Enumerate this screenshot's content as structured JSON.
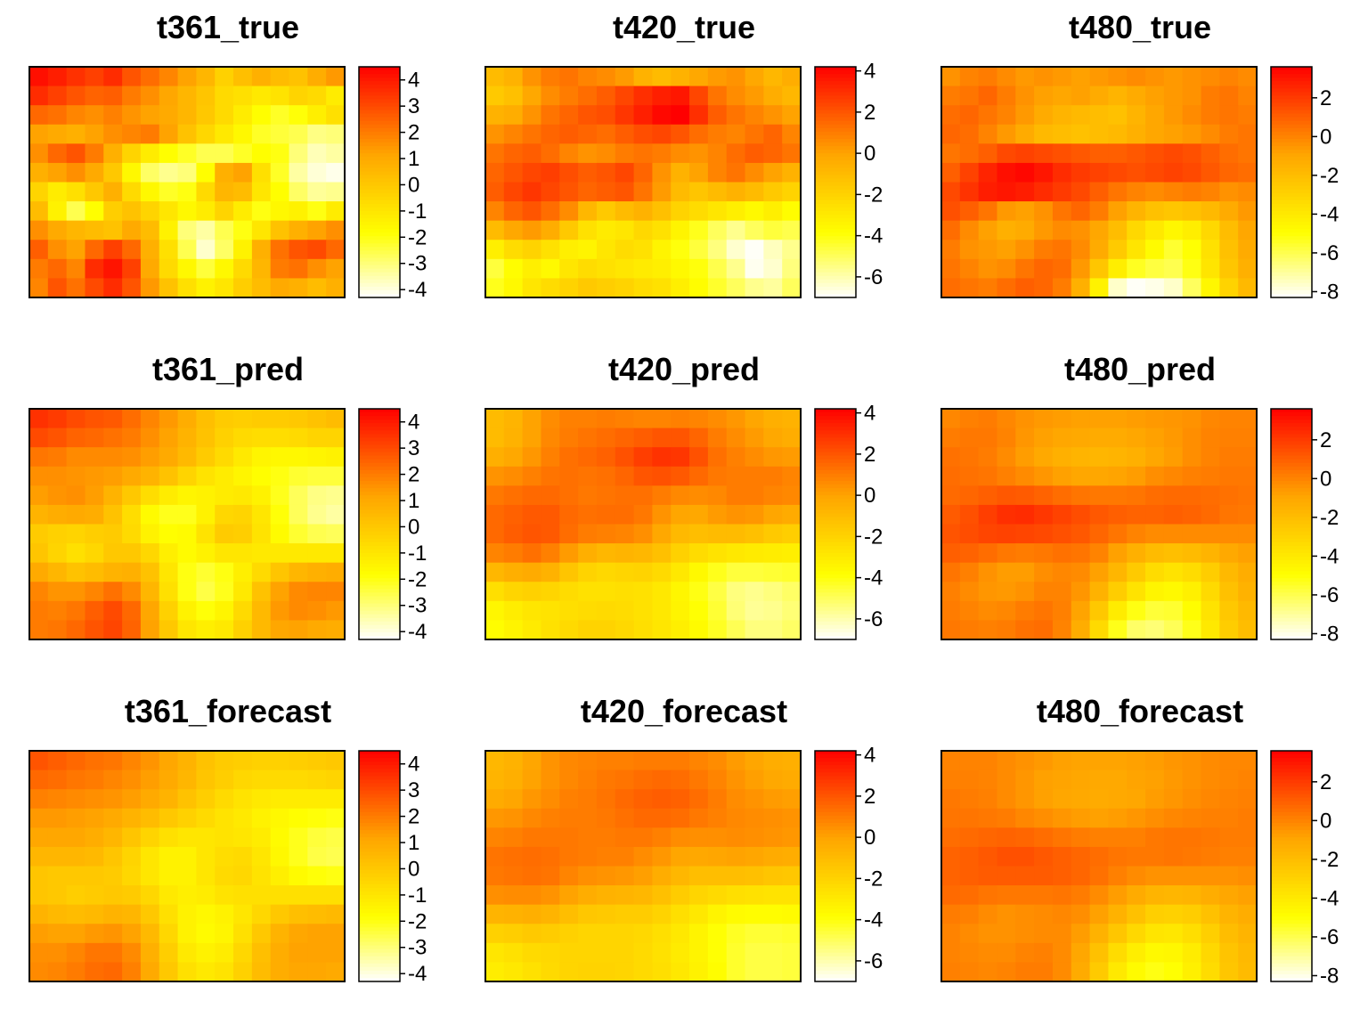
{
  "chart_data": {
    "type": "heatmap",
    "colormap": "heat",
    "colors": {
      "low": "#ffffff",
      "mid_low": "#ffff00",
      "mid": "#ffa500",
      "high": "#ff0000"
    },
    "legend_placement": "right",
    "grid": false,
    "panels": [
      {
        "title": "t361_true",
        "zlim": [
          -4.3,
          4.5
        ],
        "ticks": [
          4,
          3,
          2,
          1,
          0,
          -1,
          -2,
          -3,
          -4
        ],
        "variant": "true",
        "grid": [
          [
            4.2,
            3.9,
            3.5,
            3.2,
            3.6,
            2.8,
            2.3,
            1.8,
            1.2,
            0.6,
            -0.3,
            0.3,
            0.8,
            0.4,
            0.2,
            0.9,
            1.4
          ],
          [
            3.6,
            3.2,
            2.8,
            2.5,
            2.6,
            2.0,
            1.6,
            1.1,
            0.6,
            0.1,
            -0.6,
            -0.8,
            -1.1,
            -0.9,
            -0.4,
            -0.6,
            -1.2
          ],
          [
            2.4,
            2.2,
            1.8,
            1.6,
            1.9,
            1.5,
            1.2,
            1.0,
            0.6,
            0.0,
            -0.6,
            -1.2,
            -1.8,
            -2.2,
            -1.9,
            -1.3,
            -0.8
          ],
          [
            1.2,
            1.0,
            0.8,
            1.2,
            1.6,
            1.8,
            2.0,
            1.2,
            0.2,
            -0.5,
            -1.1,
            -1.6,
            -2.2,
            -2.4,
            -2.6,
            -3.1,
            -3.0
          ],
          [
            1.6,
            2.4,
            2.8,
            2.0,
            0.8,
            -0.4,
            -1.2,
            -1.8,
            -2.2,
            -2.6,
            -2.6,
            -2.2,
            -1.8,
            -2.0,
            -3.0,
            -3.6,
            -3.4
          ],
          [
            0.8,
            1.2,
            1.6,
            1.0,
            0.0,
            -1.6,
            -2.8,
            -3.2,
            -3.0,
            -1.8,
            0.8,
            1.2,
            -0.8,
            -2.2,
            -3.4,
            -3.9,
            -4.1
          ],
          [
            -0.4,
            -1.2,
            -0.8,
            0.0,
            0.8,
            -0.6,
            -1.6,
            -2.2,
            -2.0,
            -0.6,
            0.6,
            0.4,
            -1.0,
            -1.8,
            -2.8,
            -3.3,
            -3.2
          ],
          [
            0.4,
            -1.4,
            -2.6,
            -1.8,
            -0.2,
            0.2,
            -0.4,
            -1.0,
            -1.6,
            -1.2,
            -0.4,
            -1.2,
            -2.0,
            -1.6,
            -1.4,
            -2.0,
            -1.2
          ],
          [
            1.6,
            1.0,
            0.6,
            0.4,
            0.2,
            1.0,
            0.4,
            -1.4,
            -3.0,
            -3.4,
            -2.6,
            -2.0,
            -1.0,
            0.2,
            0.8,
            1.2,
            1.6
          ],
          [
            2.6,
            1.6,
            1.2,
            2.4,
            3.2,
            2.4,
            0.8,
            -0.8,
            -2.6,
            -3.8,
            -2.8,
            -1.4,
            0.8,
            2.2,
            2.8,
            3.0,
            2.4
          ],
          [
            2.0,
            2.4,
            1.8,
            3.6,
            4.1,
            3.2,
            1.0,
            -0.6,
            -1.6,
            -2.4,
            -1.6,
            -0.6,
            0.6,
            2.0,
            2.2,
            1.6,
            1.2
          ],
          [
            1.8,
            2.8,
            2.2,
            3.0,
            3.6,
            2.8,
            1.4,
            0.2,
            -0.8,
            -1.4,
            -1.0,
            -0.2,
            0.4,
            1.0,
            0.8,
            0.4,
            0.8
          ]
        ]
      },
      {
        "title": "t420_true",
        "zlim": [
          -7.0,
          4.2
        ],
        "ticks": [
          4,
          2,
          0,
          -2,
          -4,
          -6
        ],
        "variant": "true",
        "grid": [
          [
            -1.0,
            -0.6,
            0.4,
            1.0,
            1.2,
            0.8,
            0.6,
            0.2,
            -0.6,
            -1.0,
            -0.6,
            -0.2,
            0.2,
            0.4,
            -0.2,
            -0.8,
            -0.4
          ],
          [
            -1.6,
            -1.2,
            -0.2,
            0.6,
            1.0,
            1.4,
            1.8,
            2.4,
            3.0,
            3.4,
            3.6,
            2.4,
            1.2,
            0.6,
            0.2,
            -0.4,
            -0.8
          ],
          [
            -0.6,
            -0.4,
            0.4,
            1.2,
            1.6,
            2.0,
            2.2,
            2.8,
            3.4,
            4.0,
            4.2,
            3.0,
            1.8,
            1.2,
            0.8,
            0.4,
            0.0
          ],
          [
            0.4,
            0.8,
            1.2,
            1.6,
            1.8,
            1.6,
            1.4,
            1.8,
            2.2,
            2.4,
            2.0,
            1.4,
            1.0,
            0.8,
            1.2,
            1.6,
            0.8
          ],
          [
            1.2,
            1.6,
            1.8,
            1.4,
            0.8,
            0.4,
            0.6,
            1.0,
            1.2,
            1.0,
            0.6,
            0.4,
            0.8,
            1.4,
            1.8,
            1.6,
            1.2
          ],
          [
            1.6,
            2.0,
            2.4,
            2.6,
            2.2,
            1.8,
            2.0,
            2.4,
            1.6,
            0.4,
            -0.6,
            0.0,
            0.8,
            1.2,
            0.6,
            0.0,
            -0.6
          ],
          [
            1.8,
            2.4,
            2.8,
            2.4,
            2.0,
            1.6,
            1.8,
            2.0,
            1.2,
            0.2,
            -1.0,
            -1.4,
            -1.0,
            -0.6,
            -1.0,
            -1.6,
            -2.0
          ],
          [
            0.8,
            1.6,
            2.0,
            1.4,
            0.6,
            -0.8,
            -1.6,
            -1.0,
            -0.6,
            -1.2,
            -2.0,
            -2.4,
            -2.8,
            -3.2,
            -3.6,
            -3.2,
            -3.8
          ],
          [
            -1.0,
            -0.2,
            0.2,
            -0.4,
            -1.6,
            -2.6,
            -3.0,
            -2.8,
            -2.2,
            -2.6,
            -3.4,
            -4.2,
            -5.0,
            -5.6,
            -5.0,
            -4.6,
            -4.8
          ],
          [
            -3.2,
            -2.4,
            -2.0,
            -2.6,
            -3.2,
            -3.4,
            -2.8,
            -2.4,
            -2.6,
            -3.4,
            -4.0,
            -4.6,
            -5.4,
            -6.4,
            -6.9,
            -6.2,
            -5.6
          ],
          [
            -4.6,
            -3.8,
            -3.2,
            -3.6,
            -2.8,
            -2.4,
            -2.6,
            -2.8,
            -3.0,
            -3.2,
            -3.6,
            -4.0,
            -4.8,
            -5.6,
            -6.8,
            -6.4,
            -5.4
          ],
          [
            -4.2,
            -3.6,
            -2.8,
            -2.4,
            -2.0,
            -1.6,
            -1.8,
            -2.0,
            -2.4,
            -2.6,
            -3.2,
            -3.8,
            -4.4,
            -5.0,
            -5.6,
            -5.8,
            -5.0
          ]
        ]
      },
      {
        "title": "t480_true",
        "zlim": [
          -8.3,
          3.6
        ],
        "ticks": [
          2,
          0,
          -2,
          -4,
          -6,
          -8
        ],
        "variant": "true",
        "grid": [
          [
            -0.4,
            0.0,
            0.2,
            -0.2,
            -0.6,
            -0.4,
            -0.6,
            -0.8,
            -0.6,
            -0.4,
            -0.2,
            -0.4,
            -0.6,
            -0.4,
            -0.2,
            0.0,
            -0.2
          ],
          [
            0.2,
            0.4,
            0.8,
            0.2,
            -0.4,
            -0.8,
            -1.0,
            -0.8,
            -1.2,
            -1.6,
            -1.2,
            -0.8,
            -0.6,
            -0.4,
            0.2,
            0.4,
            0.0
          ],
          [
            0.6,
            0.8,
            0.4,
            0.0,
            -0.6,
            -1.2,
            -1.6,
            -1.8,
            -2.0,
            -2.2,
            -1.6,
            -1.0,
            -0.6,
            -0.2,
            0.2,
            0.4,
            0.2
          ],
          [
            0.8,
            0.6,
            0.0,
            -0.6,
            -1.2,
            -1.8,
            -2.0,
            -2.2,
            -2.0,
            -1.8,
            -1.4,
            -1.0,
            -0.8,
            -0.6,
            -0.2,
            0.2,
            0.4
          ],
          [
            0.4,
            0.6,
            1.0,
            1.6,
            1.8,
            1.6,
            1.4,
            1.2,
            1.0,
            1.0,
            1.2,
            1.4,
            1.6,
            1.4,
            1.0,
            0.6,
            0.4
          ],
          [
            1.0,
            1.8,
            2.6,
            3.2,
            3.4,
            3.0,
            2.4,
            2.0,
            1.8,
            1.6,
            1.4,
            1.6,
            1.8,
            1.6,
            1.2,
            0.8,
            0.6
          ],
          [
            1.6,
            2.2,
            2.8,
            3.0,
            2.8,
            2.4,
            2.0,
            1.6,
            1.0,
            0.4,
            0.0,
            -0.2,
            0.0,
            0.2,
            0.0,
            -0.4,
            -0.2
          ],
          [
            1.4,
            1.0,
            0.4,
            -0.6,
            -0.8,
            -0.4,
            0.4,
            0.8,
            0.2,
            -0.8,
            -1.6,
            -2.2,
            -2.4,
            -2.2,
            -1.8,
            -1.2,
            -0.6
          ],
          [
            0.6,
            -0.2,
            -0.8,
            -1.4,
            -1.2,
            -0.6,
            -0.2,
            -0.4,
            -1.0,
            -2.0,
            -3.2,
            -4.0,
            -4.6,
            -4.2,
            -3.2,
            -2.0,
            -1.0
          ],
          [
            0.2,
            -0.4,
            -0.6,
            -0.8,
            -0.4,
            0.2,
            0.4,
            -0.2,
            -1.2,
            -2.6,
            -3.8,
            -4.8,
            -5.6,
            -5.0,
            -3.6,
            -2.2,
            -1.2
          ],
          [
            0.4,
            0.0,
            -0.4,
            -0.2,
            0.4,
            0.8,
            0.6,
            -0.6,
            -2.4,
            -4.2,
            -5.4,
            -5.8,
            -6.0,
            -5.2,
            -3.8,
            -2.4,
            -1.4
          ],
          [
            0.6,
            0.4,
            0.2,
            0.6,
            1.0,
            0.8,
            0.2,
            -1.4,
            -4.4,
            -7.6,
            -8.2,
            -8.0,
            -7.6,
            -6.2,
            -4.6,
            -3.0,
            -1.8
          ]
        ]
      },
      {
        "title": "t361_pred",
        "zlim": [
          -4.3,
          4.5
        ],
        "ticks": [
          4,
          3,
          2,
          1,
          0,
          -1,
          -2,
          -3,
          -4
        ],
        "variant": "pred"
      },
      {
        "title": "t420_pred",
        "zlim": [
          -7.0,
          4.2
        ],
        "ticks": [
          4,
          2,
          0,
          -2,
          -4,
          -6
        ],
        "variant": "pred"
      },
      {
        "title": "t480_pred",
        "zlim": [
          -8.3,
          3.6
        ],
        "ticks": [
          2,
          0,
          -2,
          -4,
          -6,
          -8
        ],
        "variant": "pred"
      },
      {
        "title": "t361_forecast",
        "zlim": [
          -4.3,
          4.5
        ],
        "ticks": [
          4,
          3,
          2,
          1,
          0,
          -1,
          -2,
          -3,
          -4
        ],
        "variant": "forecast"
      },
      {
        "title": "t420_forecast",
        "zlim": [
          -7.0,
          4.2
        ],
        "ticks": [
          4,
          2,
          0,
          -2,
          -4,
          -6
        ],
        "variant": "forecast"
      },
      {
        "title": "t480_forecast",
        "zlim": [
          -8.3,
          3.6
        ],
        "ticks": [
          2,
          0,
          -2,
          -4,
          -6,
          -8
        ],
        "variant": "forecast"
      }
    ]
  }
}
